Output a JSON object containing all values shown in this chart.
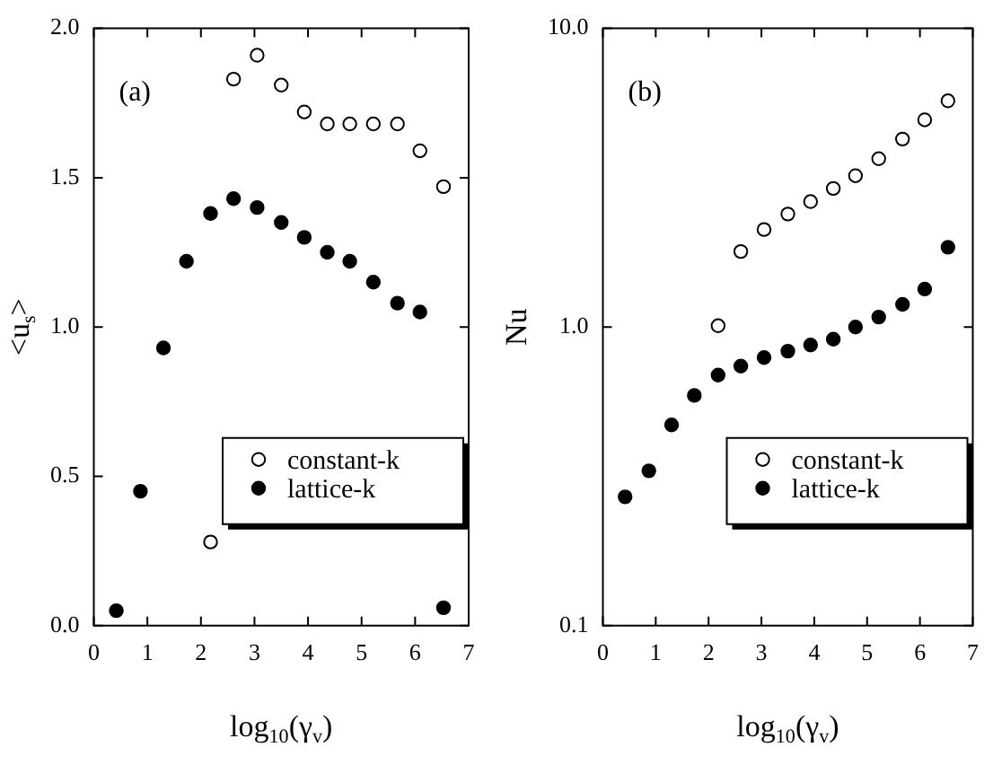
{
  "chart_data": [
    {
      "type": "scatter",
      "ylabel": "<u$_{s}$>",
      "xlabel": "log$_{10}$(γ$_{v}$)",
      "annotations": [
        "(a)"
      ],
      "xlim": [
        0,
        7
      ],
      "xticks": [
        0,
        1,
        2,
        3,
        4,
        5,
        6,
        7
      ],
      "ylim": [
        0,
        2
      ],
      "yticks": [
        {
          "value": 0,
          "label": "0.0"
        },
        0.5,
        {
          "value": 1,
          "label": "1.0"
        },
        1.5,
        {
          "value": 2,
          "label": "2.0"
        }
      ],
      "grid": false,
      "legend": "bottom right",
      "marker": "circle",
      "series": [
        {
          "name": "constant-k",
          "color": "#ffffff",
          "x": [
            2.18,
            2.61,
            3.05,
            3.5,
            3.93,
            4.36,
            4.78,
            5.22,
            5.67,
            6.09,
            6.53
          ],
          "values": [
            0.28,
            1.83,
            1.91,
            1.81,
            1.72,
            1.68,
            1.68,
            1.68,
            1.68,
            1.59,
            1.47
          ]
        },
        {
          "name": "lattice-k",
          "color": "#000000",
          "x": [
            0.42,
            0.87,
            1.3,
            1.73,
            2.18,
            2.61,
            3.05,
            3.5,
            3.93,
            4.36,
            4.78,
            5.22,
            5.67,
            6.09,
            6.53
          ],
          "values": [
            0.05,
            0.45,
            0.93,
            1.22,
            1.38,
            1.43,
            1.4,
            1.35,
            1.3,
            1.25,
            1.22,
            1.15,
            1.08,
            1.05,
            0.06
          ]
        }
      ]
    },
    {
      "type": "scatter",
      "ylabel": "Nu",
      "xlabel": "log$_{10}$(γ$_{v}$)",
      "annotations": [
        "(b)"
      ],
      "log": "y",
      "xlim": [
        0,
        7
      ],
      "xticks": [
        0,
        1,
        2,
        3,
        4,
        5,
        6,
        7
      ],
      "ylim": [
        0.1,
        10
      ],
      "yticks": [
        0.1,
        {
          "value": 1,
          "label": "1.0"
        },
        {
          "value": 10,
          "label": "10.0"
        }
      ],
      "grid": false,
      "legend": "bottom right",
      "marker": "circle",
      "series": [
        {
          "name": "constant-k",
          "color": "#ffffff",
          "x": [
            2.18,
            2.61,
            3.05,
            3.5,
            3.93,
            4.36,
            4.78,
            5.22,
            5.67,
            6.09,
            6.53
          ],
          "values": [
            1.01,
            1.79,
            2.12,
            2.39,
            2.63,
            2.91,
            3.21,
            3.66,
            4.26,
            4.94,
            5.72
          ]
        },
        {
          "name": "lattice-k",
          "color": "#000000",
          "x": [
            0.42,
            0.87,
            1.3,
            1.73,
            2.18,
            2.61,
            3.05,
            3.5,
            3.93,
            4.36,
            4.78,
            5.22,
            5.67,
            6.09,
            6.53
          ],
          "values": [
            0.27,
            0.33,
            0.47,
            0.59,
            0.69,
            0.74,
            0.79,
            0.83,
            0.87,
            0.91,
            1.0,
            1.08,
            1.19,
            1.34,
            1.85
          ]
        }
      ]
    }
  ]
}
